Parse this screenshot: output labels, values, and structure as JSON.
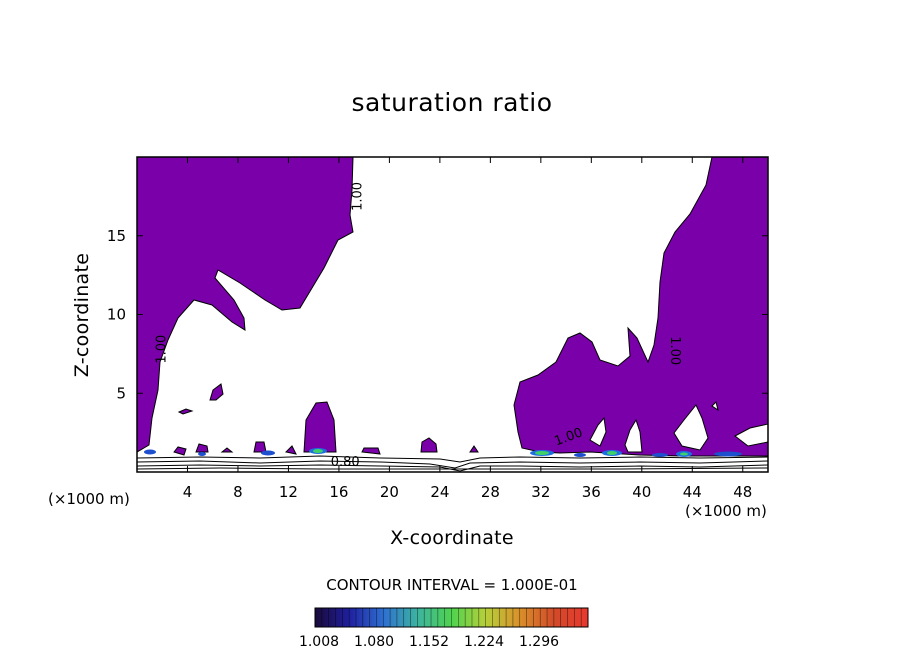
{
  "chart_data": {
    "type": "heatmap",
    "title": "saturation ratio",
    "xlabel": "X-coordinate",
    "ylabel": "Z-coordinate",
    "x_unit_left": "(×1000 m)",
    "x_unit_right": "(×1000 m)",
    "xlim": [
      0,
      50
    ],
    "ylim": [
      0,
      20
    ],
    "x_ticks": [
      4,
      8,
      12,
      16,
      20,
      24,
      28,
      32,
      36,
      40,
      44,
      48
    ],
    "y_ticks": [
      5,
      10,
      15
    ],
    "contour_interval_label": "CONTOUR INTERVAL = 1.000E-01",
    "contour_labels": [
      {
        "text": "1.00",
        "x": 17.5,
        "z": 17.5,
        "rotate": -90
      },
      {
        "text": "1.00",
        "x": 2.0,
        "z": 7.8,
        "rotate": -90
      },
      {
        "text": "1.00",
        "x": 42.6,
        "z": 7.7,
        "rotate": 90
      },
      {
        "text": "1.00",
        "x": 34.2,
        "z": 2.2,
        "rotate": -20
      },
      {
        "text": "0.80",
        "x": 16.5,
        "z": 0.6,
        "rotate": 0
      }
    ],
    "colorbar": {
      "tick_labels": [
        "1.008",
        "1.080",
        "1.152",
        "1.224",
        "1.296"
      ],
      "colors": [
        "#1a0a3a",
        "#1f1f9e",
        "#2e6fd1",
        "#3cb3a0",
        "#4fd34f",
        "#b6cf3a",
        "#d9902a",
        "#d24a2a",
        "#e8392e"
      ]
    },
    "region_color": "#7a00aa",
    "high_spot_colors": [
      "#1d6fe0",
      "#3fd06a",
      "#e0d050"
    ]
  }
}
